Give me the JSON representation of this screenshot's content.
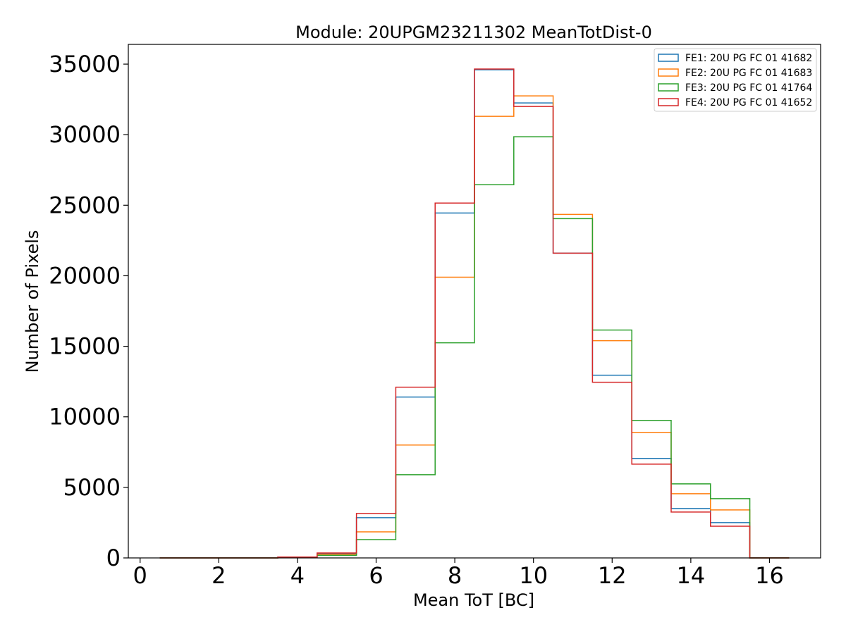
{
  "chart_data": {
    "type": "histogram-step",
    "title": "Module: 20UPGM23211302 MeanTotDist-0",
    "xlabel": "Mean ToT [BC]",
    "ylabel": "Number of Pixels",
    "xlim": [
      -0.3,
      17.3
    ],
    "ylim": [
      0,
      36400
    ],
    "bin_edges": [
      0.5,
      1.5,
      2.5,
      3.5,
      4.5,
      5.5,
      6.5,
      7.5,
      8.5,
      9.5,
      10.5,
      11.5,
      12.5,
      13.5,
      14.5,
      15.5,
      16.5
    ],
    "x_ticks": [
      0,
      2,
      4,
      6,
      8,
      10,
      12,
      14,
      16
    ],
    "x_tick_labels": [
      "0",
      "2",
      "4",
      "6",
      "8",
      "10",
      "12",
      "14",
      "16"
    ],
    "y_ticks": [
      0,
      5000,
      10000,
      15000,
      20000,
      25000,
      30000,
      35000
    ],
    "y_tick_labels": [
      "0",
      "5000",
      "10000",
      "15000",
      "20000",
      "25000",
      "30000",
      "35000"
    ],
    "grid": false,
    "legend_position": "top-right",
    "series": [
      {
        "name": "FE1: 20U PG FC 01 41682",
        "color": "#1f77b4",
        "values": [
          0,
          0,
          0,
          50,
          300,
          2850,
          11400,
          24450,
          34600,
          32250,
          21600,
          12950,
          7050,
          3500,
          2500,
          0
        ]
      },
      {
        "name": "FE2: 20U PG FC 01 41683",
        "color": "#ff7f0e",
        "values": [
          0,
          0,
          0,
          30,
          250,
          1850,
          8000,
          19900,
          31300,
          32750,
          24350,
          15400,
          8900,
          4550,
          3400,
          0
        ]
      },
      {
        "name": "FE3: 20U PG FC 01 41764",
        "color": "#2ca02c",
        "values": [
          0,
          0,
          0,
          20,
          180,
          1300,
          5900,
          15250,
          26450,
          29850,
          24050,
          16150,
          9750,
          5250,
          4200,
          0
        ]
      },
      {
        "name": "FE4: 20U PG FC 01 41652",
        "color": "#d62728",
        "values": [
          0,
          0,
          0,
          60,
          350,
          3150,
          12100,
          25150,
          34650,
          32000,
          21600,
          12450,
          6650,
          3250,
          2250,
          0
        ]
      }
    ]
  }
}
